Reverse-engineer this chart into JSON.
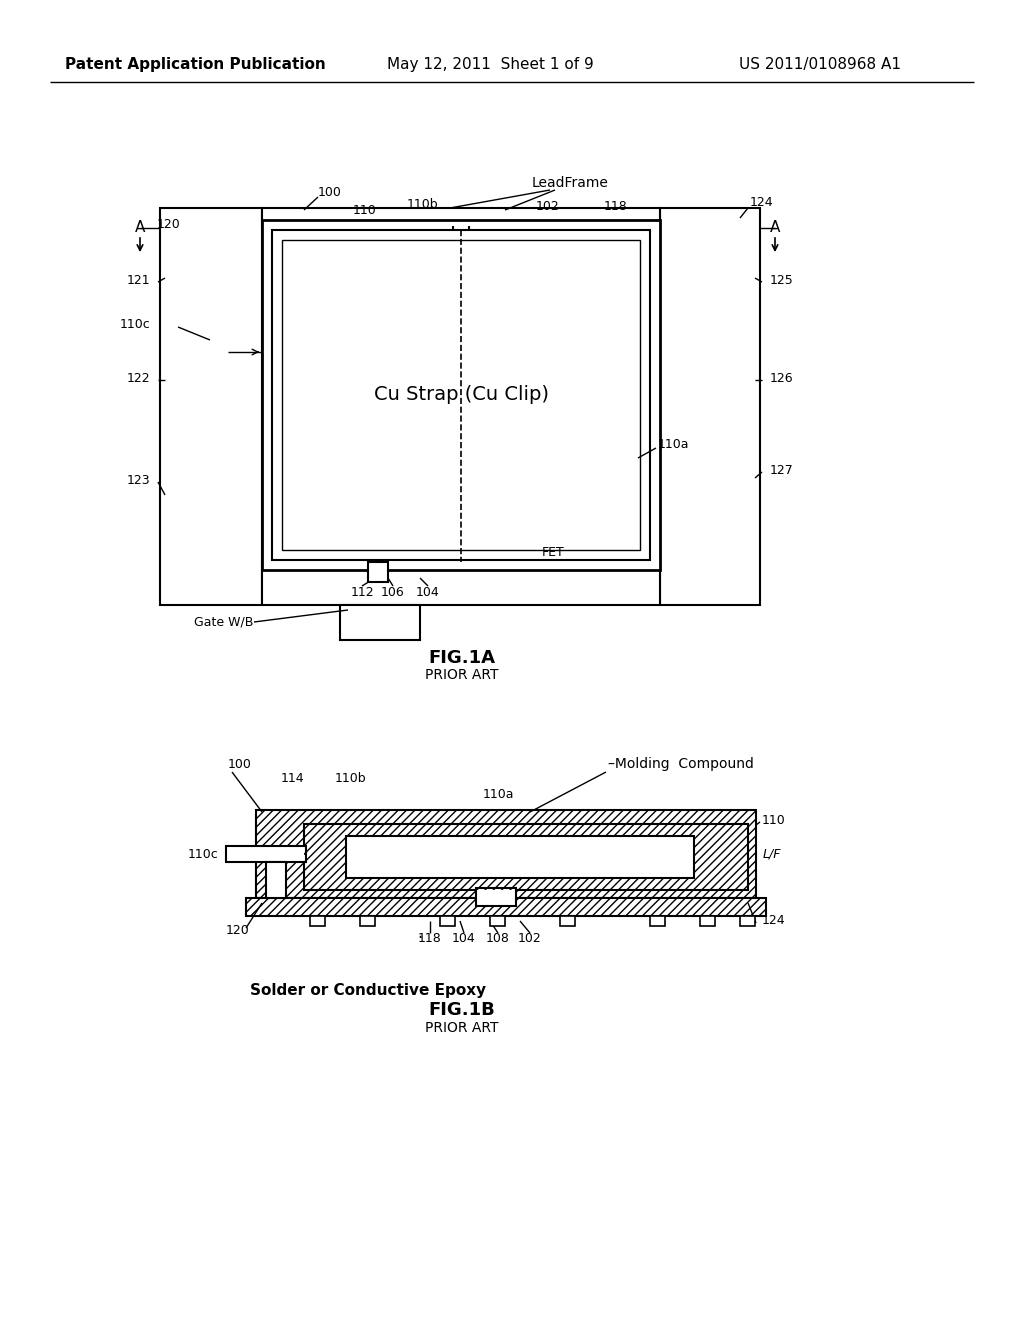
{
  "bg_color": "#ffffff",
  "header_text": "Patent Application Publication",
  "header_date": "May 12, 2011  Sheet 1 of 9",
  "header_patent": "US 2011/0108968 A1",
  "fig1a_title": "FIG.1A",
  "fig1a_subtitle": "PRIOR ART",
  "fig1b_title": "FIG.1B",
  "fig1b_subtitle": "PRIOR ART",
  "line_color": "#000000",
  "text_color": "#000000"
}
